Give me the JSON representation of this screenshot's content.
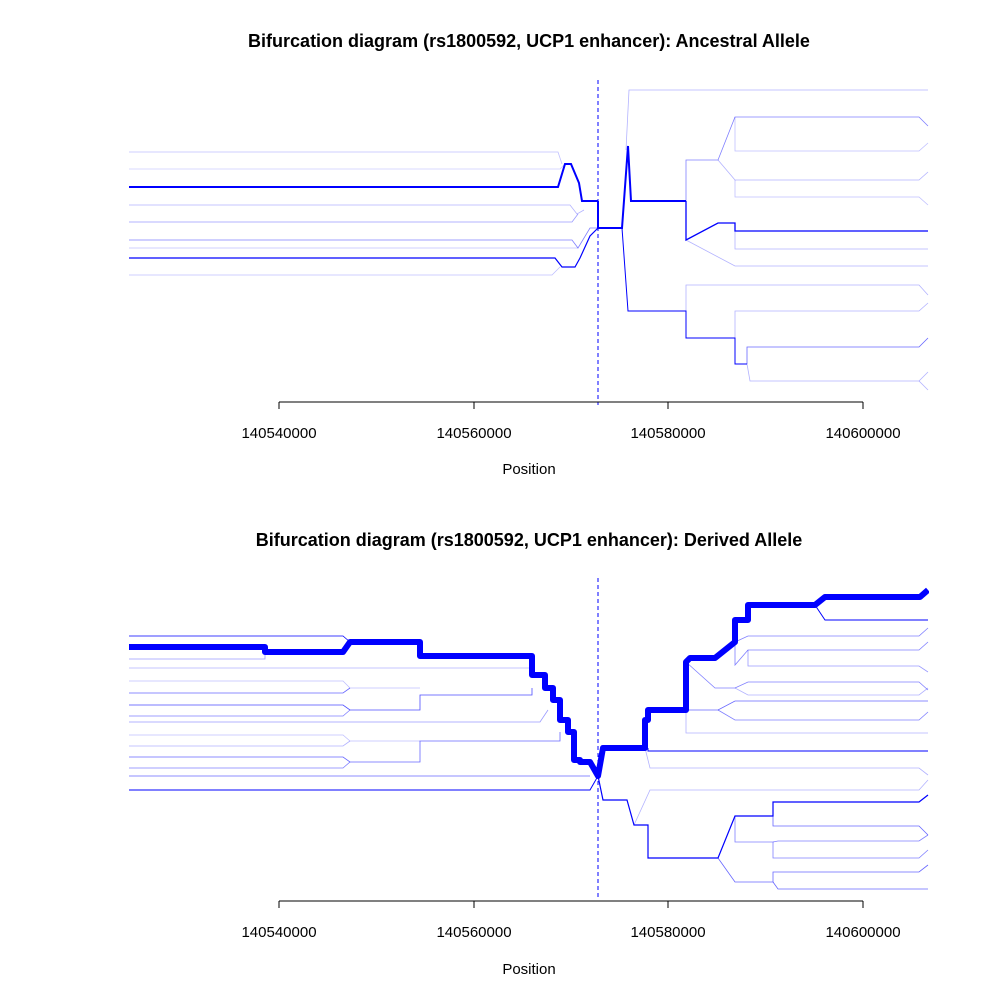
{
  "chart_data": [
    {
      "type": "line",
      "title": "Bifurcation diagram (rs1800592, UCP1 enhancer): Ancestral Allele",
      "xlabel": "Position",
      "ylabel": "",
      "xlim": [
        140524600,
        140606700
      ],
      "x_ticks": [
        140540000,
        140560000,
        140580000,
        140600000
      ],
      "x_tick_labels": [
        "140540000",
        "140560000",
        "140580000",
        "140600000"
      ],
      "focal_position": 140573000,
      "colors": {
        "lines": "#0000ff",
        "marker": "#0000ff"
      }
    },
    {
      "type": "line",
      "title": "Bifurcation diagram (rs1800592, UCP1 enhancer): Derived Allele",
      "xlabel": "Position",
      "ylabel": "",
      "xlim": [
        140524600,
        140606700
      ],
      "x_ticks": [
        140540000,
        140560000,
        140580000,
        140600000
      ],
      "x_tick_labels": [
        "140540000",
        "140560000",
        "140580000",
        "140600000"
      ],
      "focal_position": 140573000,
      "colors": {
        "lines": "#0000ff",
        "marker": "#0000ff"
      }
    }
  ]
}
